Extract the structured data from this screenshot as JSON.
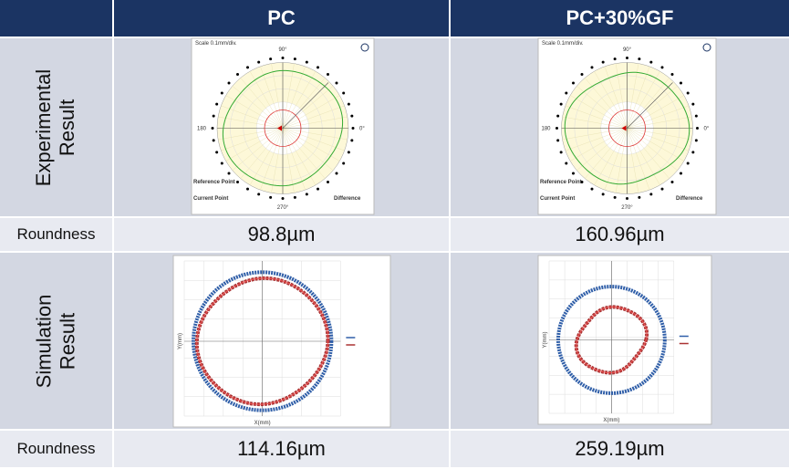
{
  "header": {
    "columns": [
      "PC",
      "PC+30%GF"
    ]
  },
  "rows": [
    {
      "label": [
        "Experimental",
        "Result"
      ]
    },
    {
      "label": "Roundness",
      "values": [
        "98.8µm",
        "160.96µm"
      ]
    },
    {
      "label": [
        "Simulation",
        "Result"
      ]
    },
    {
      "label": "Roundness",
      "values": [
        "114.16µm",
        "259.19µm"
      ]
    }
  ],
  "polar_plot": {
    "scale": "Scale 0.1mm/div.",
    "angles": [
      "90°",
      "180",
      "0°",
      "270°"
    ],
    "notes": [
      "Reference Point",
      "Current Point",
      "Difference"
    ]
  },
  "simulation_plot": {
    "x_label": "X(mm)",
    "y_label": "Y(mm)"
  }
}
